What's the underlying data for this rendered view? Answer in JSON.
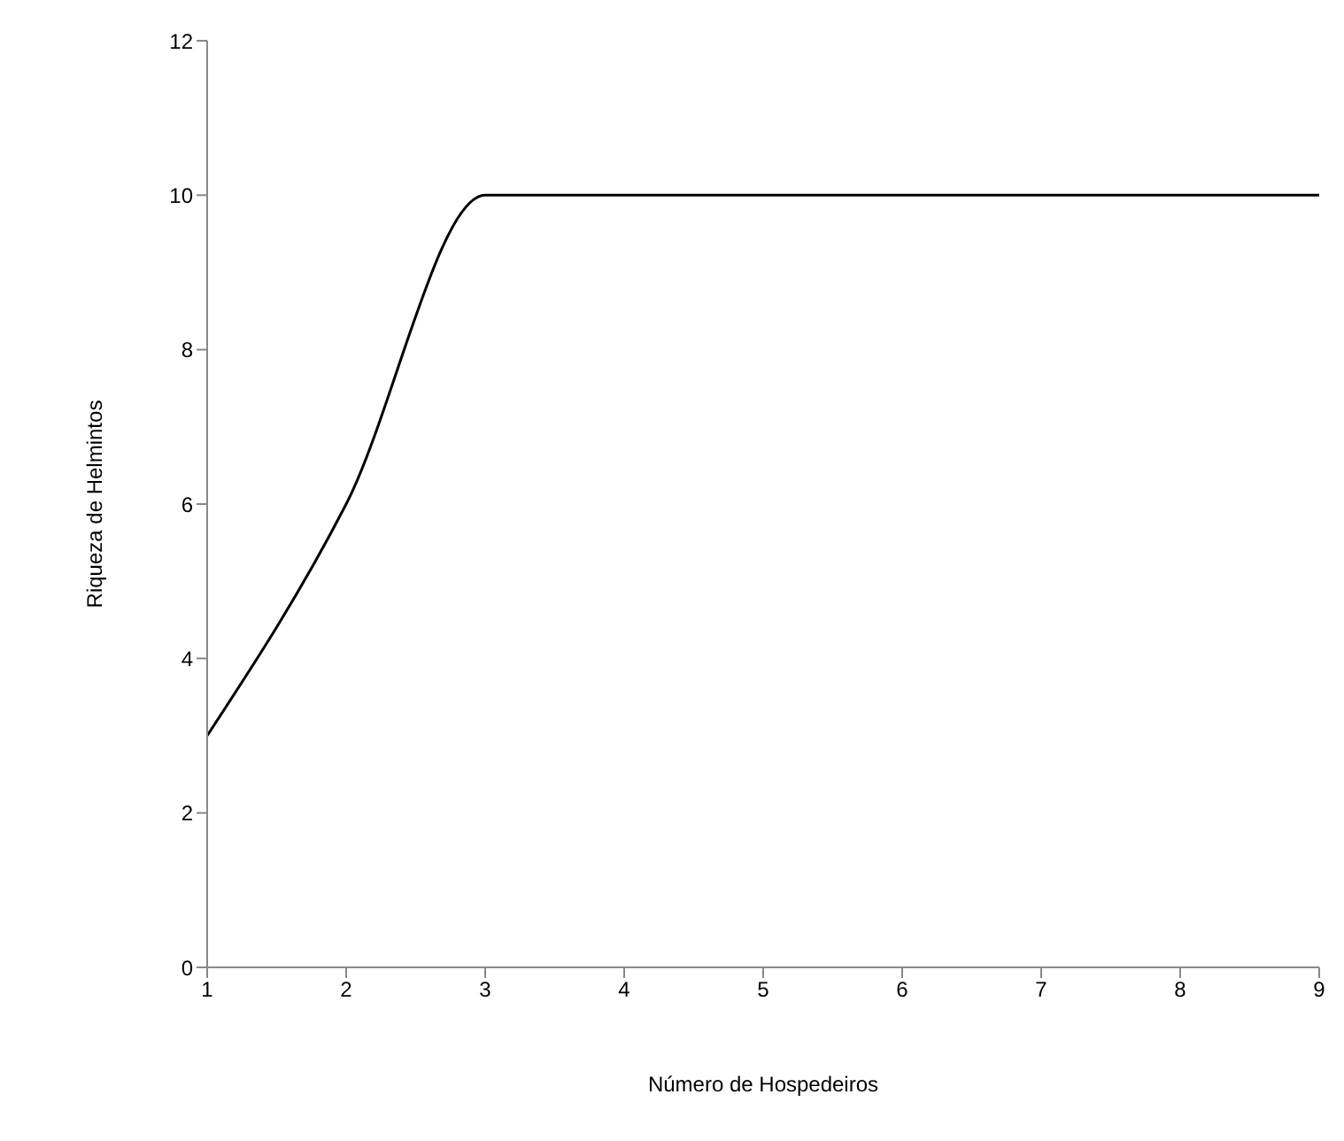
{
  "chart_data": {
    "type": "line",
    "xlabel": "Número de Hospedeiros",
    "ylabel": "Riqueza de Helmintos",
    "x": [
      1,
      2,
      3,
      4,
      5,
      6,
      7,
      8,
      9
    ],
    "series": [
      {
        "color": "#000000",
        "values": [
          3,
          6,
          10,
          10,
          10,
          10,
          10,
          10,
          10
        ]
      }
    ],
    "xlim": [
      1,
      9
    ],
    "xticks": [
      1,
      2,
      3,
      4,
      5,
      6,
      7,
      8,
      9
    ],
    "ylim": [
      0,
      12
    ],
    "yticks": [
      0,
      2,
      4,
      6,
      8,
      10,
      12
    ],
    "grid": false,
    "legend": false,
    "marker": "none",
    "line_style": "solid"
  }
}
